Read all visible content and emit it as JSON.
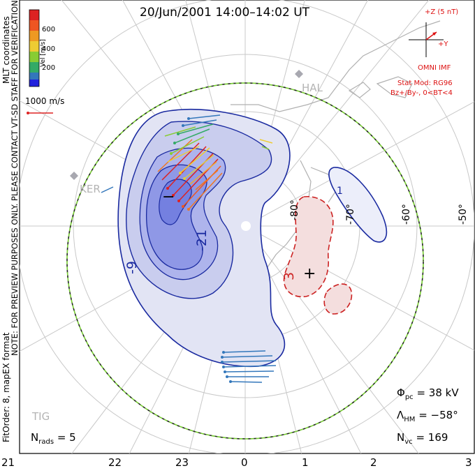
{
  "title": "20/Jun/2001 14:00–14:02 UT",
  "coord_label": "MLT coordinates",
  "colorbar": {
    "axis_label": "Vel [m/s]",
    "ticks": [
      "600",
      "400",
      "200"
    ],
    "colors": [
      "#2222dd",
      "#3377bb",
      "#33aa66",
      "#88cc33",
      "#eecc33",
      "#ee7722",
      "#dd2222"
    ]
  },
  "reference_vector": {
    "label": "1000 m/s",
    "color": "#dd2222"
  },
  "imf": {
    "z_label": "+Z (5 nT)",
    "y_label": "+Y",
    "source": "OMNI IMF",
    "stat_model": "Stat Mod: RG96",
    "condition": "Bz+/By-, 0<BT<4",
    "color": "#dd1111"
  },
  "sites": [
    "HAL",
    "KER",
    "TIG"
  ],
  "lat_labels": [
    "-80°",
    "-70°",
    "-60°",
    "-50°"
  ],
  "contour_labels": [
    "-21",
    "-9",
    "3",
    "1"
  ],
  "potential_marks": [
    "+",
    "−"
  ],
  "notes": {
    "preview": "NOTE: FOR PREVIEW PURPOSES ONLY. PLEASE CONTACT VT-SD STAFF FOR VERIFICATION.",
    "fit": "FitOrder: 8, mapEX format"
  },
  "stats": {
    "nrads_main": "N",
    "nrads_sub": "rads",
    "nrads_value": "= 5",
    "phi_main": "Φ",
    "phi_sub": "pc",
    "phi_value": "=  38 kV",
    "lambda_main": "Λ",
    "lambda_sub": "HM",
    "lambda_value": "= −58°",
    "nvc_main": "N",
    "nvc_sub": "vc",
    "nvc_value": "= 169"
  },
  "mlt_ticks": [
    "21",
    "22",
    "23",
    "0",
    "1",
    "2",
    "3"
  ]
}
